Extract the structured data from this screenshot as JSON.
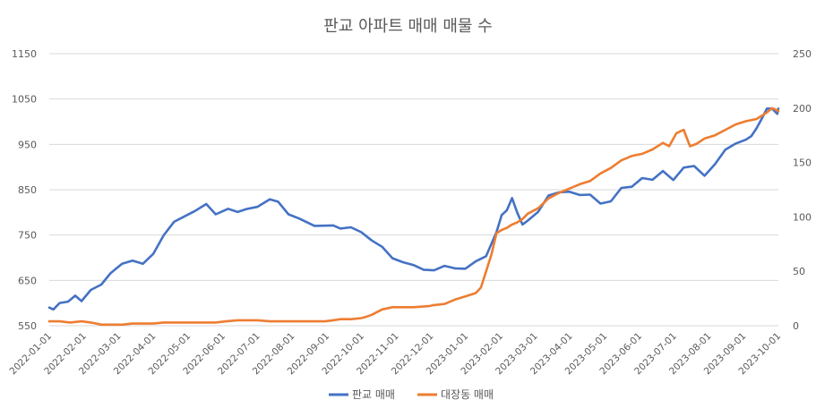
{
  "chart_data": {
    "type": "line",
    "title": "판교 아파트 매매 매물 수",
    "x_ticks": [
      "2022-01-01",
      "2022-02-01",
      "2022-03-01",
      "2022-04-01",
      "2022-05-01",
      "2022-06-01",
      "2022-07-01",
      "2022-08-01",
      "2022-09-01",
      "2022-10-01",
      "2022-11-01",
      "2022-12-01",
      "2023-01-01",
      "2023-02-01",
      "2023-03-01",
      "2023-04-01",
      "2023-05-01",
      "2023-06-01",
      "2023-07-01",
      "2023-08-01",
      "2023-09-01",
      "2023-10-01"
    ],
    "y_left": {
      "min": 550,
      "max": 1150,
      "ticks": [
        "550",
        "650",
        "750",
        "850",
        "950",
        "1050",
        "1150"
      ]
    },
    "y_right": {
      "min": 0,
      "max": 250,
      "ticks": [
        "0",
        "50",
        "100",
        "150",
        "200",
        "250"
      ]
    },
    "series": [
      {
        "name": "판교 매매",
        "axis": "left",
        "color": "#4472C4",
        "points": [
          [
            0,
            590
          ],
          [
            4,
            588
          ],
          [
            10,
            596
          ],
          [
            18,
            600
          ],
          [
            25,
            612
          ],
          [
            31,
            607
          ],
          [
            40,
            625
          ],
          [
            50,
            640
          ],
          [
            59,
            665
          ],
          [
            70,
            685
          ],
          [
            80,
            690
          ],
          [
            90,
            690
          ],
          [
            100,
            710
          ],
          [
            110,
            745
          ],
          [
            120,
            780
          ],
          [
            130,
            795
          ],
          [
            140,
            800
          ],
          [
            151,
            815
          ],
          [
            160,
            800
          ],
          [
            172,
            807
          ],
          [
            181,
            800
          ],
          [
            190,
            810
          ],
          [
            200,
            815
          ],
          [
            212,
            832
          ],
          [
            220,
            823
          ],
          [
            230,
            800
          ],
          [
            240,
            785
          ],
          [
            255,
            770
          ],
          [
            273,
            768
          ],
          [
            280,
            760
          ],
          [
            290,
            768
          ],
          [
            300,
            760
          ],
          [
            310,
            735
          ],
          [
            320,
            722
          ],
          [
            330,
            703
          ],
          [
            340,
            690
          ],
          [
            350,
            680
          ],
          [
            360,
            676
          ],
          [
            370,
            675
          ],
          [
            380,
            678
          ],
          [
            390,
            676
          ],
          [
            400,
            680
          ],
          [
            410,
            690
          ],
          [
            420,
            700
          ],
          [
            425,
            730
          ],
          [
            430,
            760
          ],
          [
            435,
            790
          ],
          [
            440,
            806
          ],
          [
            445,
            834
          ],
          [
            450,
            795
          ],
          [
            455,
            776
          ],
          [
            460,
            783
          ],
          [
            470,
            805
          ],
          [
            480,
            834
          ],
          [
            490,
            842
          ],
          [
            500,
            850
          ],
          [
            510,
            838
          ],
          [
            520,
            835
          ],
          [
            530,
            822
          ],
          [
            540,
            827
          ],
          [
            550,
            850
          ],
          [
            560,
            856
          ],
          [
            570,
            880
          ],
          [
            580,
            870
          ],
          [
            590,
            888
          ],
          [
            600,
            875
          ],
          [
            610,
            900
          ],
          [
            620,
            898
          ],
          [
            630,
            882
          ],
          [
            640,
            910
          ],
          [
            650,
            935
          ],
          [
            660,
            950
          ],
          [
            670,
            965
          ],
          [
            675,
            965
          ],
          [
            680,
            985
          ],
          [
            685,
            1010
          ],
          [
            690,
            1025
          ],
          [
            695,
            1030
          ],
          [
            700,
            1020
          ],
          [
            701,
            1025
          ]
        ]
      },
      {
        "name": "대장동 매매",
        "axis": "right",
        "color": "#ED7D31",
        "points": [
          [
            0,
            4
          ],
          [
            10,
            4
          ],
          [
            20,
            3
          ],
          [
            31,
            4
          ],
          [
            40,
            3
          ],
          [
            50,
            1
          ],
          [
            59,
            1
          ],
          [
            70,
            1
          ],
          [
            80,
            2
          ],
          [
            90,
            2
          ],
          [
            100,
            2
          ],
          [
            110,
            3
          ],
          [
            120,
            3
          ],
          [
            130,
            3
          ],
          [
            140,
            3
          ],
          [
            151,
            3
          ],
          [
            160,
            3
          ],
          [
            170,
            4
          ],
          [
            181,
            5
          ],
          [
            190,
            5
          ],
          [
            200,
            5
          ],
          [
            212,
            4
          ],
          [
            220,
            4
          ],
          [
            230,
            4
          ],
          [
            243,
            4
          ],
          [
            255,
            4
          ],
          [
            265,
            4
          ],
          [
            273,
            5
          ],
          [
            280,
            6
          ],
          [
            290,
            6
          ],
          [
            300,
            7
          ],
          [
            304,
            8
          ],
          [
            310,
            10
          ],
          [
            320,
            15
          ],
          [
            330,
            17
          ],
          [
            340,
            17
          ],
          [
            350,
            17
          ],
          [
            365,
            18
          ],
          [
            370,
            19
          ],
          [
            380,
            20
          ],
          [
            390,
            24
          ],
          [
            400,
            27
          ],
          [
            410,
            30
          ],
          [
            415,
            35
          ],
          [
            420,
            50
          ],
          [
            425,
            65
          ],
          [
            430,
            85
          ],
          [
            435,
            88
          ],
          [
            440,
            90
          ],
          [
            445,
            93
          ],
          [
            450,
            95
          ],
          [
            455,
            98
          ],
          [
            460,
            103
          ],
          [
            470,
            108
          ],
          [
            480,
            117
          ],
          [
            490,
            122
          ],
          [
            500,
            126
          ],
          [
            510,
            130
          ],
          [
            520,
            133
          ],
          [
            530,
            140
          ],
          [
            540,
            145
          ],
          [
            550,
            152
          ],
          [
            560,
            156
          ],
          [
            570,
            158
          ],
          [
            580,
            162
          ],
          [
            590,
            168
          ],
          [
            596,
            165
          ],
          [
            603,
            177
          ],
          [
            610,
            180
          ],
          [
            616,
            165
          ],
          [
            622,
            167
          ],
          [
            630,
            172
          ],
          [
            640,
            175
          ],
          [
            650,
            180
          ],
          [
            660,
            185
          ],
          [
            670,
            188
          ],
          [
            680,
            190
          ],
          [
            690,
            196
          ],
          [
            695,
            200
          ],
          [
            700,
            198
          ],
          [
            701,
            197
          ]
        ]
      }
    ],
    "legend": [
      {
        "label": "판교 매매",
        "color": "#4472C4"
      },
      {
        "label": "대장동 매매",
        "color": "#ED7D31"
      }
    ]
  }
}
